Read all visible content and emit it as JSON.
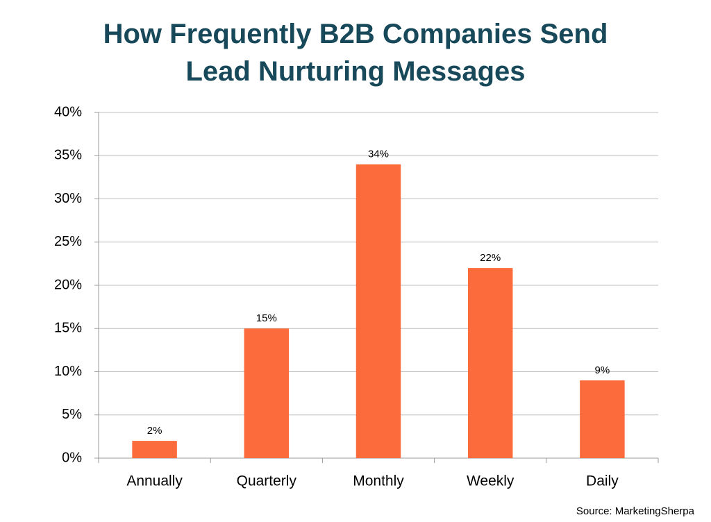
{
  "chart_data": {
    "type": "bar",
    "title": "How Frequently B2B Companies Send Lead Nurturing Messages",
    "categories": [
      "Annually",
      "Quarterly",
      "Monthly",
      "Weekly",
      "Daily"
    ],
    "values": [
      2,
      15,
      34,
      22,
      9
    ],
    "value_labels": [
      "2%",
      "15%",
      "34%",
      "22%",
      "9%"
    ],
    "color": "#fc6b3b",
    "ylim": [
      0,
      40
    ],
    "yticks": [
      {
        "value": 0,
        "label": "0%"
      },
      {
        "value": 5,
        "label": "5%"
      },
      {
        "value": 10,
        "label": "10%"
      },
      {
        "value": 15,
        "label": "15%"
      },
      {
        "value": 20,
        "label": "20%"
      },
      {
        "value": 25,
        "label": "25%"
      },
      {
        "value": 30,
        "label": "30%"
      },
      {
        "value": 35,
        "label": "35%"
      },
      {
        "value": 40,
        "label": "40%"
      }
    ],
    "grid": true,
    "source": "Source: MarketingSherpa"
  }
}
